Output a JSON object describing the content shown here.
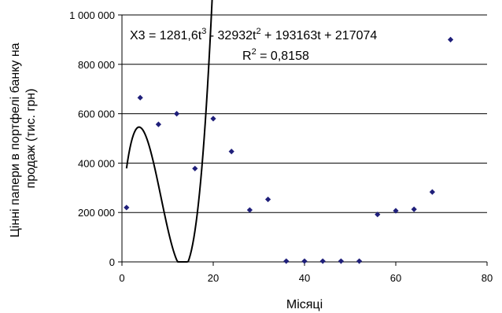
{
  "chart_data": {
    "type": "scatter",
    "title": "",
    "xlabel": "Місяці",
    "ylabel": "Цінні папери в портфелі банку на продаж (тис. грн)",
    "xlim": [
      0,
      80
    ],
    "ylim": [
      0,
      1000000
    ],
    "x_ticks": [
      0,
      20,
      40,
      60,
      80
    ],
    "x_tick_labels": [
      "0",
      "20",
      "40",
      "60",
      "80"
    ],
    "y_ticks": [
      0,
      200000,
      400000,
      600000,
      800000,
      1000000
    ],
    "y_tick_labels": [
      "0",
      "200 000",
      "400 000",
      "600 000",
      "800 000",
      "1 000 000"
    ],
    "grid": "horizontal",
    "marker_color": "#1f1f7a",
    "series": [
      {
        "x": [
          1,
          4,
          8,
          12,
          16,
          20,
          24,
          28,
          32,
          36,
          40,
          44,
          48,
          52,
          56,
          60,
          64,
          68,
          72
        ],
        "y": [
          220000,
          665000,
          557000,
          600000,
          378000,
          580000,
          447000,
          210000,
          253000,
          3000,
          3000,
          3000,
          3000,
          3000,
          192000,
          207000,
          213000,
          283000,
          900000
        ]
      }
    ],
    "trendline": {
      "type": "polynomial",
      "order": 3,
      "coefficients": [
        1281.6,
        -32932,
        193163,
        217074
      ],
      "x_range": [
        1,
        72
      ],
      "equation_label": {
        "lhs": "X3 = 1281,6t",
        "exp1": "3",
        "mid": " - 32932t",
        "exp2": "2",
        "rhs": " + 193163t + 217074"
      },
      "r2_label": {
        "prefix": "R",
        "exp": "2",
        "suffix": " = 0,8158"
      }
    }
  }
}
